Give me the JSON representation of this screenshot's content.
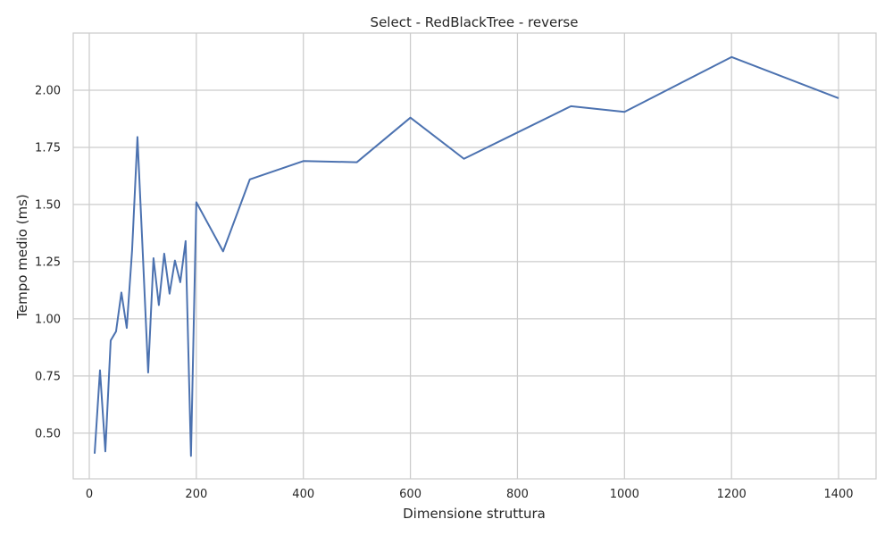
{
  "chart_data": {
    "type": "line",
    "title": "Select - RedBlackTree - reverse",
    "xlabel": "Dimensione struttura",
    "ylabel": "Tempo medio (ms)",
    "xlim": [
      -30,
      1470
    ],
    "ylim": [
      0.3,
      2.25
    ],
    "xticks": [
      0,
      200,
      400,
      600,
      800,
      1000,
      1200,
      1400
    ],
    "yticks": [
      0.5,
      0.75,
      1.0,
      1.25,
      1.5,
      1.75,
      2.0
    ],
    "ytick_labels": [
      "0.50",
      "0.75",
      "1.00",
      "1.25",
      "1.50",
      "1.75",
      "2.00"
    ],
    "grid": true,
    "series": [
      {
        "color": "#4c72b0",
        "x": [
          10,
          20,
          30,
          40,
          50,
          60,
          70,
          80,
          90,
          100,
          110,
          120,
          130,
          140,
          150,
          160,
          170,
          180,
          190,
          200,
          250,
          300,
          400,
          500,
          600,
          700,
          800,
          900,
          1000,
          1200,
          1400
        ],
        "y": [
          0.41,
          0.775,
          0.42,
          0.905,
          0.945,
          1.115,
          0.96,
          1.3,
          1.795,
          1.285,
          0.765,
          1.265,
          1.06,
          1.285,
          1.11,
          1.255,
          1.16,
          1.34,
          0.4,
          1.51,
          1.295,
          1.61,
          1.69,
          1.685,
          1.88,
          1.7,
          1.815,
          1.93,
          1.905,
          2.145,
          1.965
        ]
      }
    ]
  }
}
